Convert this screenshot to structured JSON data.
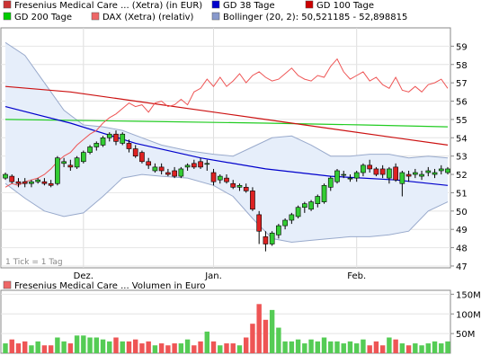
{
  "legend": {
    "items": [
      {
        "label": "Fresenius Medical Care ... (Xetra) (in EUR)",
        "color": "#cc3333"
      },
      {
        "label": "GD 38 Tage",
        "color": "#0000cc"
      },
      {
        "label": "GD 100 Tage",
        "color": "#cc0000"
      },
      {
        "label": "GD 200 Tage",
        "color": "#00cc00"
      },
      {
        "label": "DAX (Xetra) (relativ)",
        "color": "#ee6666"
      },
      {
        "label": "Bollinger (20, 2): 50,521185 - 52,898815",
        "color": "#8899cc"
      }
    ]
  },
  "price_chart": {
    "tick_note": "1 Tick = 1 Tag",
    "y_ticks": [
      "47",
      "48",
      "49",
      "50",
      "51",
      "52",
      "53",
      "54",
      "55",
      "56",
      "57",
      "58",
      "59"
    ],
    "ylim": [
      46.9,
      60.0
    ],
    "x_labels": [
      {
        "label": "Dez.",
        "index": 12
      },
      {
        "label": "Jan.",
        "index": 32
      },
      {
        "label": "Feb.",
        "index": 54
      }
    ]
  },
  "volume_chart": {
    "title": "Fresenius Medical Care ... Volumen in Euro",
    "y_ticks": [
      "50M",
      "100M",
      "150M"
    ],
    "ylim": [
      0,
      160
    ]
  },
  "chart_data": {
    "type": "candlestick",
    "ohlc": [
      [
        51.8,
        52.1,
        51.7,
        52.0
      ],
      [
        51.9,
        52.0,
        51.5,
        51.6
      ],
      [
        51.6,
        51.8,
        51.3,
        51.5
      ],
      [
        51.6,
        51.8,
        51.3,
        51.5
      ],
      [
        51.5,
        51.7,
        51.3,
        51.6
      ],
      [
        51.6,
        51.8,
        51.5,
        51.7
      ],
      [
        51.6,
        51.8,
        51.4,
        51.5
      ],
      [
        51.5,
        51.7,
        51.3,
        51.4
      ],
      [
        51.5,
        53.0,
        51.4,
        52.9
      ],
      [
        52.6,
        52.9,
        52.4,
        52.7
      ],
      [
        52.5,
        52.8,
        52.2,
        52.4
      ],
      [
        52.4,
        53.0,
        52.3,
        52.9
      ],
      [
        52.7,
        53.3,
        52.6,
        53.2
      ],
      [
        53.2,
        53.6,
        53.1,
        53.5
      ],
      [
        53.5,
        53.8,
        53.3,
        53.7
      ],
      [
        53.6,
        54.1,
        53.5,
        54.0
      ],
      [
        54.0,
        54.3,
        53.8,
        54.2
      ],
      [
        54.2,
        54.4,
        53.6,
        53.8
      ],
      [
        53.7,
        54.3,
        53.6,
        54.2
      ],
      [
        53.7,
        53.9,
        53.2,
        53.4
      ],
      [
        53.4,
        53.6,
        52.9,
        53.0
      ],
      [
        53.2,
        53.3,
        52.6,
        52.7
      ],
      [
        52.7,
        52.9,
        52.3,
        52.5
      ],
      [
        52.2,
        52.6,
        52.1,
        52.4
      ],
      [
        52.4,
        52.6,
        52.0,
        52.2
      ],
      [
        52.1,
        52.3,
        51.9,
        52.0
      ],
      [
        52.2,
        52.4,
        51.8,
        51.9
      ],
      [
        51.9,
        52.4,
        51.8,
        52.3
      ],
      [
        52.4,
        52.6,
        52.2,
        52.5
      ],
      [
        52.6,
        52.8,
        52.3,
        52.4
      ],
      [
        52.7,
        52.9,
        52.3,
        52.4
      ],
      [
        52.6,
        52.8,
        52.2,
        52.6
      ],
      [
        52.1,
        52.3,
        51.4,
        51.6
      ],
      [
        51.7,
        52.0,
        51.5,
        51.9
      ],
      [
        51.8,
        52.0,
        51.5,
        51.6
      ],
      [
        51.5,
        51.7,
        51.2,
        51.3
      ],
      [
        51.3,
        51.5,
        51.1,
        51.4
      ],
      [
        51.3,
        51.5,
        51.0,
        51.1
      ],
      [
        51.1,
        51.3,
        50.0,
        50.1
      ],
      [
        49.8,
        50.0,
        48.2,
        48.9
      ],
      [
        48.6,
        48.9,
        47.8,
        48.2
      ],
      [
        48.2,
        48.9,
        48.1,
        48.8
      ],
      [
        48.7,
        49.3,
        48.5,
        49.2
      ],
      [
        49.2,
        49.6,
        49.0,
        49.5
      ],
      [
        49.5,
        49.9,
        49.3,
        49.8
      ],
      [
        49.7,
        50.3,
        49.6,
        50.2
      ],
      [
        50.2,
        50.5,
        49.9,
        50.4
      ],
      [
        50.1,
        50.6,
        50.0,
        50.5
      ],
      [
        50.4,
        50.9,
        50.2,
        50.8
      ],
      [
        50.5,
        51.5,
        50.4,
        51.4
      ],
      [
        51.3,
        51.9,
        51.1,
        51.8
      ],
      [
        51.6,
        52.3,
        51.5,
        52.2
      ],
      [
        52.0,
        52.2,
        51.8,
        52.0
      ],
      [
        51.8,
        52.0,
        51.6,
        51.8
      ],
      [
        51.8,
        52.2,
        51.6,
        52.1
      ],
      [
        52.1,
        52.6,
        51.9,
        52.5
      ],
      [
        52.5,
        52.8,
        52.1,
        52.3
      ],
      [
        52.3,
        52.4,
        51.9,
        52.0
      ],
      [
        52.3,
        52.5,
        51.8,
        52.0
      ],
      [
        51.8,
        52.4,
        51.5,
        52.3
      ],
      [
        52.4,
        52.6,
        51.6,
        51.7
      ],
      [
        51.5,
        52.2,
        50.8,
        52.1
      ],
      [
        52.0,
        52.2,
        51.6,
        51.9
      ],
      [
        52.0,
        52.3,
        51.8,
        52.1
      ],
      [
        51.9,
        52.2,
        51.7,
        52.0
      ],
      [
        52.1,
        52.4,
        51.9,
        52.2
      ],
      [
        52.0,
        52.3,
        51.8,
        52.1
      ],
      [
        52.2,
        52.5,
        52.0,
        52.3
      ],
      [
        52.1,
        52.4,
        52.0,
        52.3
      ]
    ],
    "volume": [
      25,
      35,
      25,
      30,
      20,
      30,
      20,
      20,
      40,
      30,
      25,
      45,
      45,
      40,
      40,
      35,
      30,
      40,
      30,
      30,
      35,
      25,
      30,
      20,
      25,
      20,
      25,
      25,
      35,
      20,
      30,
      55,
      30,
      20,
      25,
      25,
      20,
      40,
      75,
      125,
      85,
      110,
      65,
      30,
      30,
      35,
      25,
      35,
      30,
      40,
      30,
      30,
      25,
      30,
      25,
      35,
      20,
      30,
      20,
      40,
      35,
      25,
      20,
      25,
      20,
      25,
      30,
      25,
      30
    ],
    "gd38": [
      [
        0,
        55.7
      ],
      [
        10,
        54.8
      ],
      [
        20,
        53.7
      ],
      [
        30,
        52.9
      ],
      [
        40,
        52.3
      ],
      [
        50,
        51.9
      ],
      [
        60,
        51.7
      ],
      [
        68,
        51.4
      ]
    ],
    "gd100": [
      [
        0,
        56.8
      ],
      [
        10,
        56.5
      ],
      [
        20,
        56.0
      ],
      [
        30,
        55.5
      ],
      [
        40,
        55.0
      ],
      [
        50,
        54.5
      ],
      [
        60,
        54.0
      ],
      [
        68,
        53.6
      ]
    ],
    "gd200": [
      [
        0,
        55.0
      ],
      [
        20,
        54.9
      ],
      [
        40,
        54.8
      ],
      [
        55,
        54.7
      ],
      [
        68,
        54.6
      ]
    ],
    "dax_relative": [
      [
        0,
        51.3
      ],
      [
        1,
        51.5
      ],
      [
        2,
        51.4
      ],
      [
        3,
        51.6
      ],
      [
        4,
        51.7
      ],
      [
        5,
        51.8
      ],
      [
        6,
        52.0
      ],
      [
        7,
        52.3
      ],
      [
        8,
        52.7
      ],
      [
        9,
        53.0
      ],
      [
        10,
        53.2
      ],
      [
        11,
        53.6
      ],
      [
        12,
        53.9
      ],
      [
        13,
        54.2
      ],
      [
        14,
        54.4
      ],
      [
        15,
        54.8
      ],
      [
        16,
        55.1
      ],
      [
        17,
        55.3
      ],
      [
        18,
        55.6
      ],
      [
        19,
        55.9
      ],
      [
        20,
        55.7
      ],
      [
        21,
        55.8
      ],
      [
        22,
        55.4
      ],
      [
        23,
        55.9
      ],
      [
        24,
        56.0
      ],
      [
        25,
        55.7
      ],
      [
        26,
        55.8
      ],
      [
        27,
        56.1
      ],
      [
        28,
        55.8
      ],
      [
        29,
        56.5
      ],
      [
        30,
        56.7
      ],
      [
        31,
        57.2
      ],
      [
        32,
        56.8
      ],
      [
        33,
        57.3
      ],
      [
        34,
        56.8
      ],
      [
        35,
        57.1
      ],
      [
        36,
        57.5
      ],
      [
        37,
        57.0
      ],
      [
        38,
        57.4
      ],
      [
        39,
        57.6
      ],
      [
        40,
        57.3
      ],
      [
        41,
        57.1
      ],
      [
        42,
        57.2
      ],
      [
        43,
        57.5
      ],
      [
        44,
        57.8
      ],
      [
        45,
        57.4
      ],
      [
        46,
        57.2
      ],
      [
        47,
        57.1
      ],
      [
        48,
        57.4
      ],
      [
        49,
        57.3
      ],
      [
        50,
        57.9
      ],
      [
        51,
        58.3
      ],
      [
        52,
        57.6
      ],
      [
        53,
        57.2
      ],
      [
        54,
        57.4
      ],
      [
        55,
        57.6
      ],
      [
        56,
        57.1
      ],
      [
        57,
        57.3
      ],
      [
        58,
        56.9
      ],
      [
        59,
        56.7
      ],
      [
        60,
        57.3
      ],
      [
        61,
        56.6
      ],
      [
        62,
        56.5
      ],
      [
        63,
        56.8
      ],
      [
        64,
        56.5
      ],
      [
        65,
        56.9
      ],
      [
        66,
        57.0
      ],
      [
        67,
        57.2
      ],
      [
        68,
        56.7
      ]
    ],
    "bollinger_upper": [
      [
        0,
        59.2
      ],
      [
        3,
        58.5
      ],
      [
        6,
        57.0
      ],
      [
        9,
        55.5
      ],
      [
        12,
        54.7
      ],
      [
        15,
        54.6
      ],
      [
        18,
        54.4
      ],
      [
        21,
        54.0
      ],
      [
        24,
        53.6
      ],
      [
        28,
        53.3
      ],
      [
        32,
        53.1
      ],
      [
        35,
        53.0
      ],
      [
        38,
        53.5
      ],
      [
        41,
        54.0
      ],
      [
        44,
        54.1
      ],
      [
        47,
        53.6
      ],
      [
        50,
        53.0
      ],
      [
        53,
        53.0
      ],
      [
        56,
        53.1
      ],
      [
        59,
        53.1
      ],
      [
        62,
        52.9
      ],
      [
        65,
        53.0
      ],
      [
        68,
        52.9
      ]
    ],
    "bollinger_lower": [
      [
        0,
        51.5
      ],
      [
        3,
        50.7
      ],
      [
        6,
        50.0
      ],
      [
        9,
        49.7
      ],
      [
        12,
        49.9
      ],
      [
        15,
        50.8
      ],
      [
        18,
        51.8
      ],
      [
        21,
        52.0
      ],
      [
        24,
        51.9
      ],
      [
        28,
        51.8
      ],
      [
        32,
        51.4
      ],
      [
        35,
        50.8
      ],
      [
        38,
        49.6
      ],
      [
        41,
        48.5
      ],
      [
        44,
        48.3
      ],
      [
        47,
        48.4
      ],
      [
        50,
        48.5
      ],
      [
        53,
        48.6
      ],
      [
        56,
        48.6
      ],
      [
        59,
        48.7
      ],
      [
        62,
        48.9
      ],
      [
        65,
        50.0
      ],
      [
        68,
        50.5
      ]
    ]
  }
}
